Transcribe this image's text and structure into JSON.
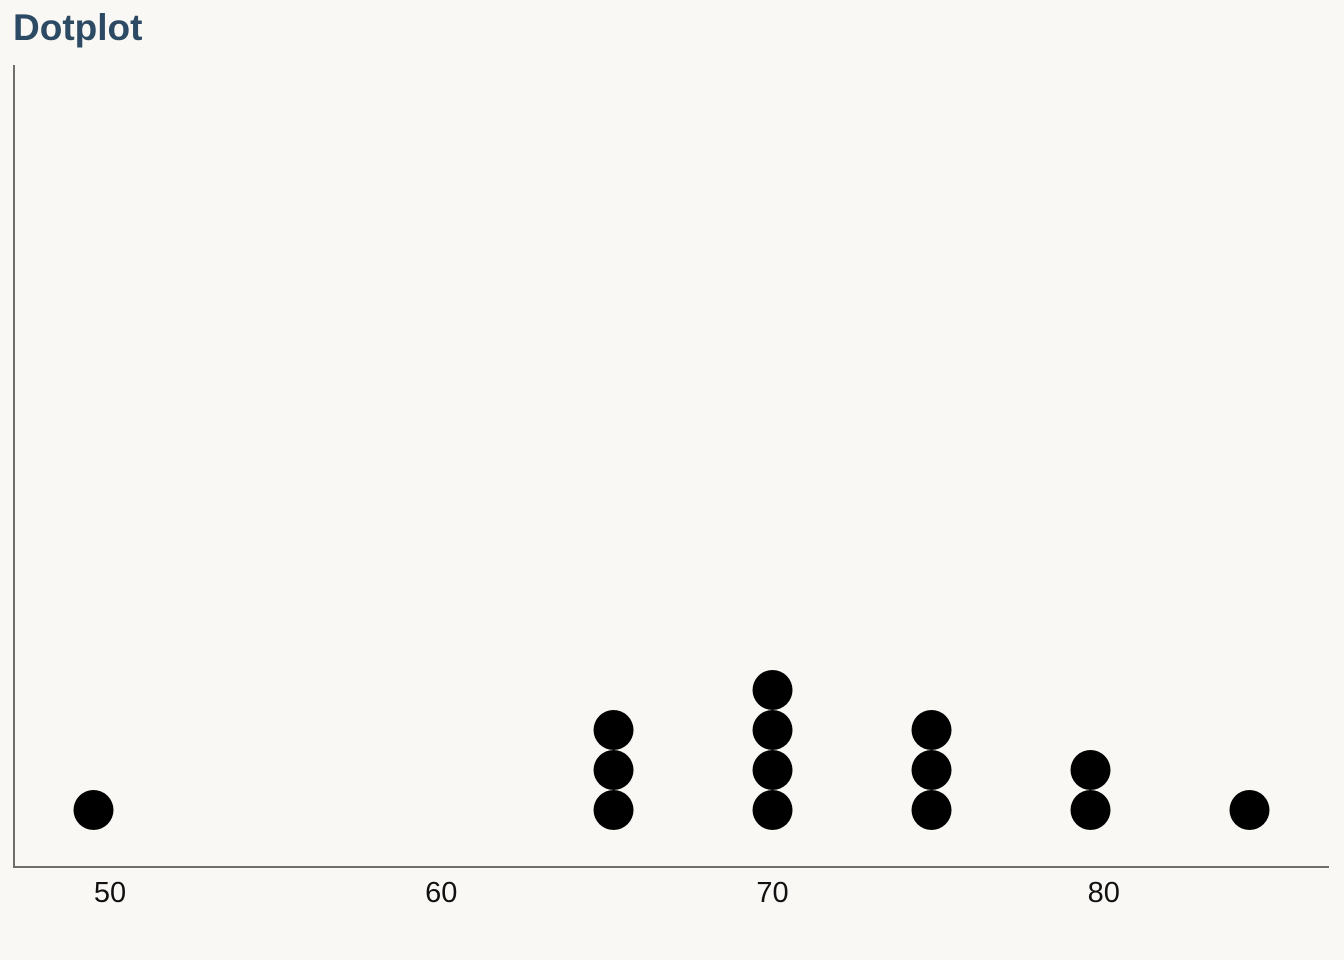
{
  "chart_data": {
    "type": "dotplot",
    "title": "Dotplot",
    "xlabel": "",
    "ylabel": "",
    "x_ticks": [
      50,
      60,
      70,
      80
    ],
    "xlim": [
      47.1,
      86.8
    ],
    "values": [
      49.5,
      65.2,
      65.2,
      65.2,
      70,
      70,
      70,
      70,
      74.8,
      74.8,
      74.8,
      79.6,
      79.6,
      84.4
    ],
    "grid": false,
    "dot_color": "#000000",
    "axis_color": "#6e6e6e",
    "title_color": "#2c4a63"
  }
}
